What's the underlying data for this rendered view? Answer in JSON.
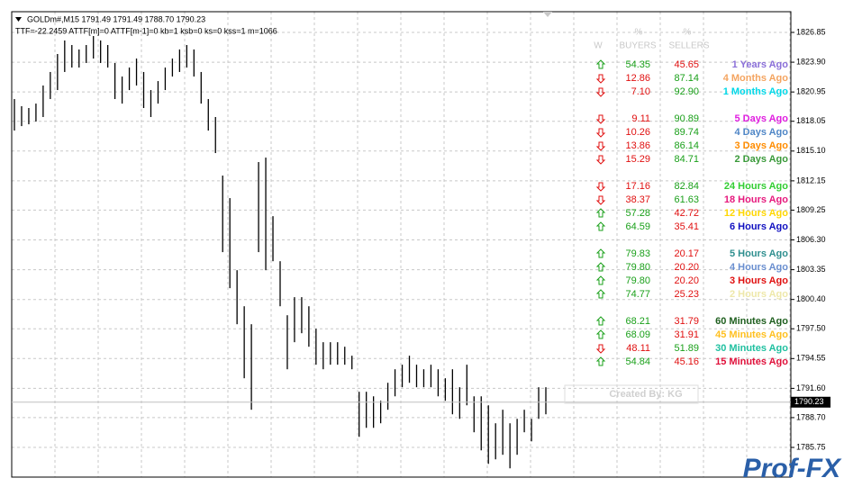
{
  "header": {
    "symbol_line": "GOLDm#,M15  1791.49 1791.49 1788.70 1790.23",
    "info_line": "TTF=-22.2459 ATTF[m]=0 ATTF[m-1]=0 kb=1 ksb=0 ks=0 kss=1 m=1066"
  },
  "chart_data": {
    "type": "range_bar",
    "color": "#000000",
    "high": [
      1820.25,
      1819.54,
      1819.36,
      1819.8,
      1821.59,
      1822.93,
      1824.71,
      1826.05,
      1825.6,
      1825.16,
      1825.6,
      1826.49,
      1826.05,
      1825.6,
      1823.82,
      1822.48,
      1823.37,
      1824.26,
      1822.93,
      1821.14,
      1822.03,
      1823.37,
      1824.26,
      1825.16,
      1825.6,
      1825.16,
      1822.93,
      1820.25,
      1818.47,
      1812.67,
      1810.44,
      1803.3,
      1799.73,
      1797.95,
      1814.01,
      1814.45,
      1808.65,
      1804.19,
      1798.84,
      1800.63,
      1800.63,
      1799.73,
      1797.5,
      1796.17,
      1796.17,
      1796.17,
      1795.72,
      1794.83,
      1791.26,
      1791.26,
      1790.81,
      1790.37,
      1792.15,
      1793.49,
      1793.94,
      1794.83,
      1793.94,
      1793.49,
      1793.94,
      1793.49,
      1792.6,
      1793.49,
      1791.71,
      1793.94,
      1790.81,
      1790.81,
      1789.92,
      1788.14,
      1789.48,
      1788.14,
      1788.58,
      1789.48,
      1788.58,
      1791.71,
      1791.71
    ],
    "low": [
      1817.13,
      1817.57,
      1817.75,
      1818.02,
      1818.47,
      1820.25,
      1821.14,
      1822.93,
      1823.37,
      1823.37,
      1823.82,
      1824.26,
      1823.82,
      1823.37,
      1820.25,
      1819.8,
      1821.14,
      1821.59,
      1819.36,
      1818.47,
      1819.8,
      1821.14,
      1822.48,
      1822.93,
      1823.37,
      1822.48,
      1819.8,
      1817.13,
      1814.9,
      1805.09,
      1801.52,
      1797.95,
      1792.6,
      1789.48,
      1805.09,
      1803.3,
      1804.19,
      1799.73,
      1793.49,
      1796.17,
      1797.06,
      1795.72,
      1793.94,
      1793.49,
      1793.94,
      1793.94,
      1793.94,
      1793.49,
      1786.8,
      1787.69,
      1787.69,
      1788.14,
      1789.48,
      1790.81,
      1791.71,
      1792.15,
      1791.71,
      1791.71,
      1791.71,
      1790.81,
      1790.37,
      1789.03,
      1788.58,
      1789.92,
      1787.25,
      1785.46,
      1784.12,
      1784.57,
      1785.02,
      1783.68,
      1785.02,
      1787.25,
      1786.35,
      1788.58,
      1789.03
    ],
    "last_price": 1790.23,
    "ylim": [
      1782.81,
      1828.9
    ],
    "yticks": [
      1826.85,
      {
        "value": 1823.9,
        "label": "1823.90"
      },
      1820.95,
      1818.05,
      {
        "value": 1815.1,
        "label": "1815.10"
      },
      1812.15,
      1809.25,
      {
        "value": 1806.3,
        "label": "1806.30"
      },
      1803.35,
      {
        "value": 1800.4,
        "label": "1800.40"
      },
      {
        "value": 1797.5,
        "label": "1797.50"
      },
      1794.55,
      {
        "value": 1791.6,
        "label": "1791.60"
      },
      {
        "value": 1788.7,
        "label": "1788.70"
      },
      1785.75
    ],
    "grid": true
  },
  "indicator": {
    "header": {
      "w": "W",
      "pct_buyers": "%",
      "buyers": "BUYERS",
      "pct_sellers": "%",
      "sellers": "SELLERS"
    },
    "groups": [
      [
        {
          "dir": "up",
          "buyers": "54.35",
          "sellers": "45.65",
          "label": "1 Years Ago",
          "color": "#8a6fd8"
        },
        {
          "dir": "down",
          "buyers": "12.86",
          "sellers": "87.14",
          "label": "4 Months Ago",
          "color": "#f4a460"
        },
        {
          "dir": "down",
          "buyers": "7.10",
          "sellers": "92.90",
          "label": "1 Months Ago",
          "color": "#00d8e8"
        }
      ],
      [
        {
          "dir": "down",
          "buyers": "9.11",
          "sellers": "90.89",
          "label": "5 Days Ago",
          "color": "#e01ee0"
        },
        {
          "dir": "down",
          "buyers": "10.26",
          "sellers": "89.74",
          "label": "4 Days Ago",
          "color": "#4f86c6"
        },
        {
          "dir": "down",
          "buyers": "13.86",
          "sellers": "86.14",
          "label": "3 Days Ago",
          "color": "#ff8c00"
        },
        {
          "dir": "down",
          "buyers": "15.29",
          "sellers": "84.71",
          "label": "2 Days Ago",
          "color": "#3a9a3a"
        }
      ],
      [
        {
          "dir": "down",
          "buyers": "17.16",
          "sellers": "82.84",
          "label": "24 Hours Ago",
          "color": "#32cd32"
        },
        {
          "dir": "down",
          "buyers": "38.37",
          "sellers": "61.63",
          "label": "18 Hours Ago",
          "color": "#e6197d"
        },
        {
          "dir": "up",
          "buyers": "57.28",
          "sellers": "42.72",
          "label": "12 Hours Ago",
          "color": "#ffd700"
        },
        {
          "dir": "up",
          "buyers": "64.59",
          "sellers": "35.41",
          "label": "6 Hours Ago",
          "color": "#1010c0"
        }
      ],
      [
        {
          "dir": "up",
          "buyers": "79.83",
          "sellers": "20.17",
          "label": "5 Hours Ago",
          "color": "#2f8f8f"
        },
        {
          "dir": "up",
          "buyers": "79.80",
          "sellers": "20.20",
          "label": "4 Hours Ago",
          "color": "#6a8fd0"
        },
        {
          "dir": "up",
          "buyers": "79.80",
          "sellers": "20.20",
          "label": "3 Hours Ago",
          "color": "#e01010"
        },
        {
          "dir": "up",
          "buyers": "74.77",
          "sellers": "25.23",
          "label": "2 Hours Ago",
          "color": "#eee8aa"
        }
      ],
      [
        {
          "dir": "up",
          "buyers": "68.21",
          "sellers": "31.79",
          "label": "60 Minutes Ago",
          "color": "#206020"
        },
        {
          "dir": "up",
          "buyers": "68.09",
          "sellers": "31.91",
          "label": "45 Minutes Ago",
          "color": "#ffc020"
        },
        {
          "dir": "down",
          "buyers": "48.11",
          "sellers": "51.89",
          "label": "30 Minutes Ago",
          "color": "#20c0a0"
        },
        {
          "dir": "up",
          "buyers": "54.84",
          "sellers": "45.16",
          "label": "15 Minutes Ago",
          "color": "#e0103a"
        }
      ]
    ]
  },
  "watermark": "Created By: KG",
  "logo": "Prof-FX"
}
